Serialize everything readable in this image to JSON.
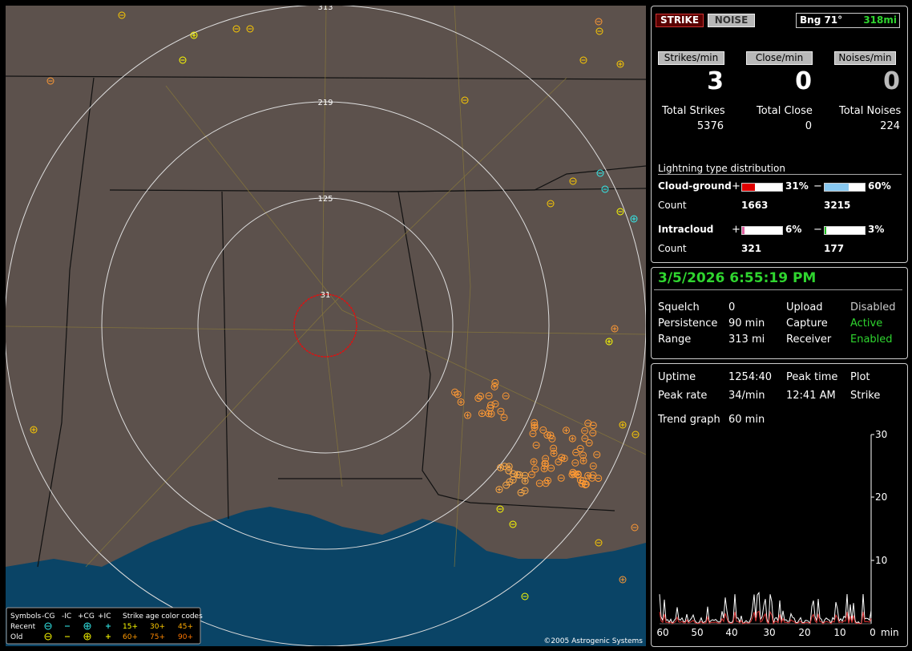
{
  "header": {
    "strike_button": "STRIKE",
    "noise_button": "NOISE",
    "bearing": "Bng 71°",
    "distance": "318mi"
  },
  "rates": [
    {
      "label": "Strikes/min",
      "value": "3"
    },
    {
      "label": "Close/min",
      "value": "0"
    },
    {
      "label": "Noises/min",
      "value": "0"
    }
  ],
  "totals": [
    {
      "label": "Total Strikes",
      "value": "5376"
    },
    {
      "label": "Total Close",
      "value": "0"
    },
    {
      "label": "Total Noises",
      "value": "224"
    }
  ],
  "distribution": {
    "title": "Lightning type distribution",
    "count_label": "Count",
    "rows": [
      {
        "name": "Cloud-ground",
        "pos_sign": "+",
        "pos_pct": 31,
        "pos_label": "31%",
        "neg_sign": "−",
        "neg_pct": 60,
        "neg_label": "60%",
        "pos_count": "1663",
        "neg_count": "3215"
      },
      {
        "name": "Intracloud",
        "pos_sign": "+",
        "pos_pct": 6,
        "pos_label": "6%",
        "neg_sign": "−",
        "neg_pct": 3,
        "neg_label": "3%",
        "pos_count": "321",
        "neg_count": "177"
      }
    ]
  },
  "status": {
    "datetime": "3/5/2026 6:55:19 PM",
    "rows": [
      [
        "Squelch",
        "0",
        "Upload",
        "Disabled"
      ],
      [
        "Persistence",
        "90 min",
        "Capture",
        "Active"
      ],
      [
        "Range",
        "313 mi",
        "Receiver",
        "Enabled"
      ]
    ]
  },
  "trend": {
    "rows": [
      [
        "Uptime",
        "1254:40",
        "Peak time",
        "Plot"
      ],
      [
        "Peak rate",
        "34/min",
        "12:41 AM",
        "Strike"
      ]
    ],
    "graph_label": "Trend graph",
    "graph_span": "60 min",
    "y_labels": [
      "30",
      "20",
      "10"
    ],
    "x_labels": [
      "60",
      "50",
      "40",
      "30",
      "20",
      "10",
      "0"
    ],
    "x_unit": "min"
  },
  "map": {
    "range_labels": [
      "313",
      "219",
      "125",
      "31"
    ],
    "copyright": "©2005 Astrogenic Systems",
    "legend": {
      "title": "Symbols",
      "types": [
        "-CG",
        "-IC",
        "+CG",
        "+IC"
      ],
      "age_title": "Strike age color codes",
      "recent": "Recent",
      "old": "Old",
      "recent_ages": [
        "15+",
        "30+",
        "45+"
      ],
      "old_ages": [
        "60+",
        "75+",
        "90+"
      ]
    }
  }
}
